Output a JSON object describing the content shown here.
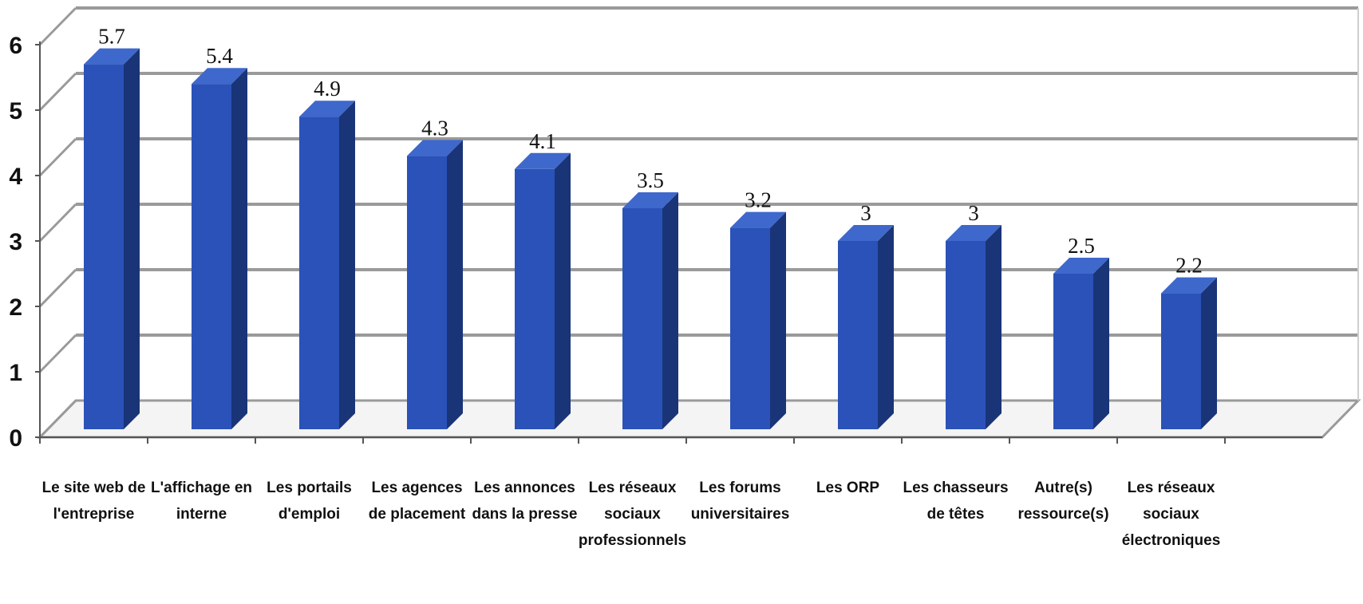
{
  "chart_data": {
    "type": "bar",
    "categories": [
      [
        "Le site web de",
        "l'entreprise"
      ],
      [
        "L'affichage en",
        "interne"
      ],
      [
        "Les portails",
        "d'emploi"
      ],
      [
        "Les agences",
        "de placement"
      ],
      [
        "Les annonces",
        "dans la presse"
      ],
      [
        "Les réseaux",
        "sociaux",
        "professionnels"
      ],
      [
        "Les forums",
        "universitaires"
      ],
      [
        "Les ORP"
      ],
      [
        "Les chasseurs",
        "de têtes"
      ],
      [
        "Autre(s)",
        "ressource(s)"
      ],
      [
        "Les réseaux",
        "sociaux",
        "électroniques"
      ]
    ],
    "values": [
      5.7,
      5.4,
      4.9,
      4.3,
      4.1,
      3.5,
      3.2,
      3,
      3,
      2.5,
      2.2
    ],
    "value_labels": [
      "5.7",
      "5.4",
      "4.9",
      "4.3",
      "4.1",
      "3.5",
      "3.2",
      "3",
      "3",
      "2.5",
      "2.2"
    ],
    "y_ticks": [
      "0",
      "1",
      "2",
      "3",
      "4",
      "5",
      "6"
    ],
    "ylim": [
      0,
      6
    ],
    "grid": true,
    "legend": "none",
    "colors": {
      "bar_front": "#2a52b8",
      "bar_side": "#1a3478",
      "bar_top": "#3f68cc",
      "grid": "#9a9a9a",
      "floor": "#f4f4f4"
    }
  }
}
